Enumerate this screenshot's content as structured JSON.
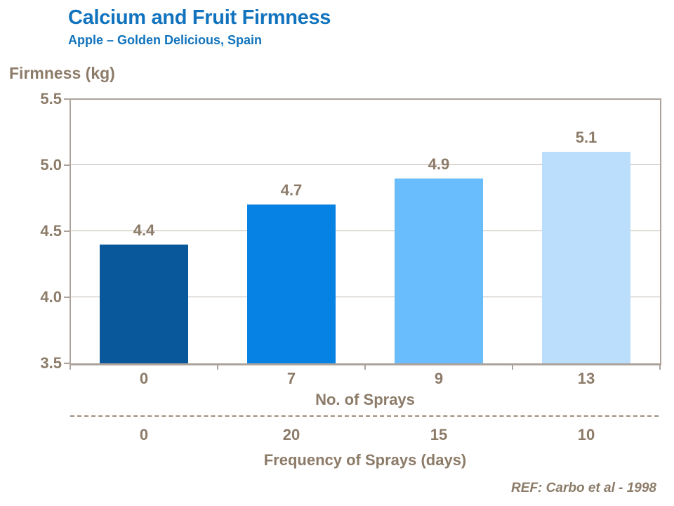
{
  "header": {
    "title": "Calcium and Fruit Firmness",
    "subtitle": "Apple – Golden Delicious, Spain"
  },
  "chart_data": {
    "type": "bar",
    "title": "Calcium and Fruit Firmness",
    "subtitle": "Apple – Golden Delicious, Spain",
    "y_axis_title": "Firmness (kg)",
    "ylim": [
      3.5,
      5.5
    ],
    "yticks": [
      "5.5",
      "5.0",
      "4.5",
      "4.0",
      "3.5"
    ],
    "grid": "horizontal gridlines at each 0.5 step",
    "legend": "none",
    "x_axis_1_title": "No. of Sprays",
    "categories_no_of_sprays": [
      "0",
      "7",
      "9",
      "13"
    ],
    "x_axis_2_title": "Frequency of Sprays (days)",
    "categories_frequency_days": [
      "0",
      "20",
      "15",
      "10"
    ],
    "values": [
      4.4,
      4.7,
      4.9,
      5.1
    ],
    "value_labels": [
      "4.4",
      "4.7",
      "4.9",
      "5.1"
    ],
    "bar_colors": [
      "#09589B",
      "#0682E4",
      "#6ABDFC",
      "#BADEFB"
    ]
  },
  "footer": {
    "reference": "REF: Carbo et al - 1998"
  },
  "colors": {
    "title_blue": "#1173BD",
    "text_brown": "#8C7B68",
    "axis_line": "#ACA39B",
    "gridline": "#BEB6AE",
    "dashed_divider": "#9E8D7C",
    "background": "#FFFFFF"
  }
}
